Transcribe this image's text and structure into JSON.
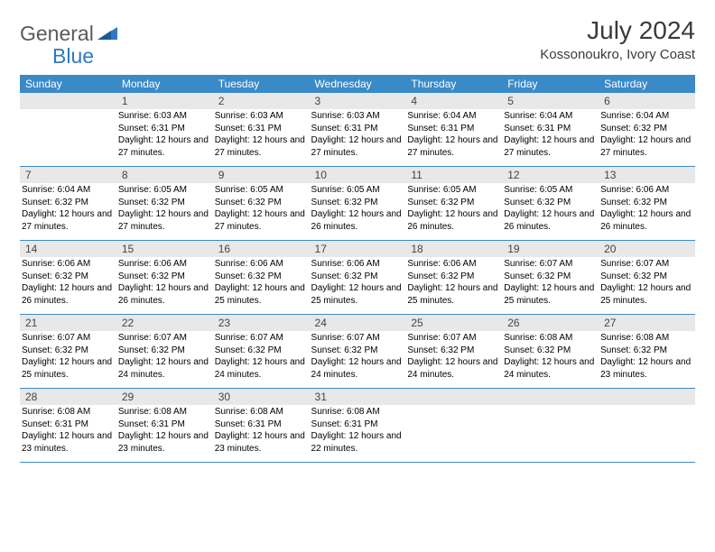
{
  "logo": {
    "text1": "General",
    "text2": "Blue"
  },
  "title": "July 2024",
  "location": "Kossonoukro, Ivory Coast",
  "colors": {
    "header_bg": "#3a8ac8",
    "header_text": "#ffffff",
    "daynum_bg": "#e8e8e8",
    "border": "#3a8ac8",
    "logo_gray": "#5a5a5a",
    "logo_blue": "#2f7abf"
  },
  "weekdays": [
    "Sunday",
    "Monday",
    "Tuesday",
    "Wednesday",
    "Thursday",
    "Friday",
    "Saturday"
  ],
  "start_offset": 1,
  "days": [
    {
      "n": 1,
      "sunrise": "6:03 AM",
      "sunset": "6:31 PM",
      "daylight": "12 hours and 27 minutes."
    },
    {
      "n": 2,
      "sunrise": "6:03 AM",
      "sunset": "6:31 PM",
      "daylight": "12 hours and 27 minutes."
    },
    {
      "n": 3,
      "sunrise": "6:03 AM",
      "sunset": "6:31 PM",
      "daylight": "12 hours and 27 minutes."
    },
    {
      "n": 4,
      "sunrise": "6:04 AM",
      "sunset": "6:31 PM",
      "daylight": "12 hours and 27 minutes."
    },
    {
      "n": 5,
      "sunrise": "6:04 AM",
      "sunset": "6:31 PM",
      "daylight": "12 hours and 27 minutes."
    },
    {
      "n": 6,
      "sunrise": "6:04 AM",
      "sunset": "6:32 PM",
      "daylight": "12 hours and 27 minutes."
    },
    {
      "n": 7,
      "sunrise": "6:04 AM",
      "sunset": "6:32 PM",
      "daylight": "12 hours and 27 minutes."
    },
    {
      "n": 8,
      "sunrise": "6:05 AM",
      "sunset": "6:32 PM",
      "daylight": "12 hours and 27 minutes."
    },
    {
      "n": 9,
      "sunrise": "6:05 AM",
      "sunset": "6:32 PM",
      "daylight": "12 hours and 27 minutes."
    },
    {
      "n": 10,
      "sunrise": "6:05 AM",
      "sunset": "6:32 PM",
      "daylight": "12 hours and 26 minutes."
    },
    {
      "n": 11,
      "sunrise": "6:05 AM",
      "sunset": "6:32 PM",
      "daylight": "12 hours and 26 minutes."
    },
    {
      "n": 12,
      "sunrise": "6:05 AM",
      "sunset": "6:32 PM",
      "daylight": "12 hours and 26 minutes."
    },
    {
      "n": 13,
      "sunrise": "6:06 AM",
      "sunset": "6:32 PM",
      "daylight": "12 hours and 26 minutes."
    },
    {
      "n": 14,
      "sunrise": "6:06 AM",
      "sunset": "6:32 PM",
      "daylight": "12 hours and 26 minutes."
    },
    {
      "n": 15,
      "sunrise": "6:06 AM",
      "sunset": "6:32 PM",
      "daylight": "12 hours and 26 minutes."
    },
    {
      "n": 16,
      "sunrise": "6:06 AM",
      "sunset": "6:32 PM",
      "daylight": "12 hours and 25 minutes."
    },
    {
      "n": 17,
      "sunrise": "6:06 AM",
      "sunset": "6:32 PM",
      "daylight": "12 hours and 25 minutes."
    },
    {
      "n": 18,
      "sunrise": "6:06 AM",
      "sunset": "6:32 PM",
      "daylight": "12 hours and 25 minutes."
    },
    {
      "n": 19,
      "sunrise": "6:07 AM",
      "sunset": "6:32 PM",
      "daylight": "12 hours and 25 minutes."
    },
    {
      "n": 20,
      "sunrise": "6:07 AM",
      "sunset": "6:32 PM",
      "daylight": "12 hours and 25 minutes."
    },
    {
      "n": 21,
      "sunrise": "6:07 AM",
      "sunset": "6:32 PM",
      "daylight": "12 hours and 25 minutes."
    },
    {
      "n": 22,
      "sunrise": "6:07 AM",
      "sunset": "6:32 PM",
      "daylight": "12 hours and 24 minutes."
    },
    {
      "n": 23,
      "sunrise": "6:07 AM",
      "sunset": "6:32 PM",
      "daylight": "12 hours and 24 minutes."
    },
    {
      "n": 24,
      "sunrise": "6:07 AM",
      "sunset": "6:32 PM",
      "daylight": "12 hours and 24 minutes."
    },
    {
      "n": 25,
      "sunrise": "6:07 AM",
      "sunset": "6:32 PM",
      "daylight": "12 hours and 24 minutes."
    },
    {
      "n": 26,
      "sunrise": "6:08 AM",
      "sunset": "6:32 PM",
      "daylight": "12 hours and 24 minutes."
    },
    {
      "n": 27,
      "sunrise": "6:08 AM",
      "sunset": "6:32 PM",
      "daylight": "12 hours and 23 minutes."
    },
    {
      "n": 28,
      "sunrise": "6:08 AM",
      "sunset": "6:31 PM",
      "daylight": "12 hours and 23 minutes."
    },
    {
      "n": 29,
      "sunrise": "6:08 AM",
      "sunset": "6:31 PM",
      "daylight": "12 hours and 23 minutes."
    },
    {
      "n": 30,
      "sunrise": "6:08 AM",
      "sunset": "6:31 PM",
      "daylight": "12 hours and 23 minutes."
    },
    {
      "n": 31,
      "sunrise": "6:08 AM",
      "sunset": "6:31 PM",
      "daylight": "12 hours and 22 minutes."
    }
  ],
  "labels": {
    "sunrise": "Sunrise:",
    "sunset": "Sunset:",
    "daylight": "Daylight:"
  }
}
